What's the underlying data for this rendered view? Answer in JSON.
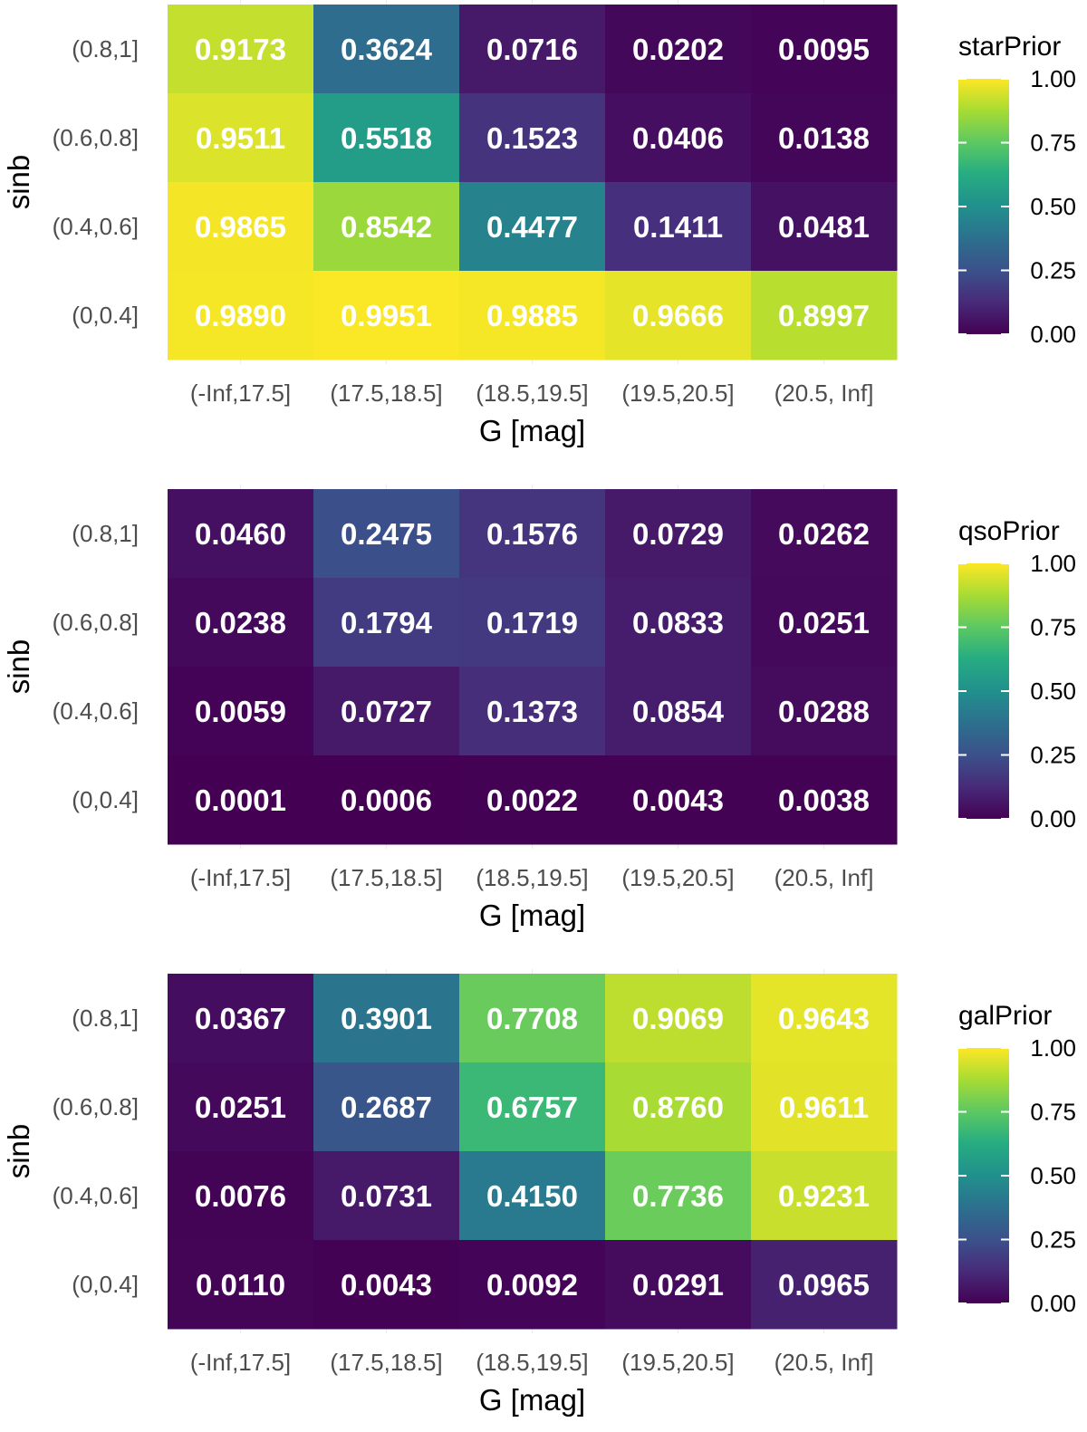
{
  "chart_data": [
    {
      "type": "heatmap",
      "xlabel": "G [mag]",
      "ylabel": "sinb",
      "x_categories": [
        "(-Inf,17.5]",
        "(17.5,18.5]",
        "(18.5,19.5]",
        "(19.5,20.5]",
        "(20.5, Inf]"
      ],
      "y_categories": [
        "(0.8,1]",
        "(0.6,0.8]",
        "(0.4,0.6]",
        "(0,0.4]"
      ],
      "values": [
        [
          0.9173,
          0.3624,
          0.0716,
          0.0202,
          0.0095
        ],
        [
          0.9511,
          0.5518,
          0.1523,
          0.0406,
          0.0138
        ],
        [
          0.9865,
          0.8542,
          0.4477,
          0.1411,
          0.0481
        ],
        [
          0.989,
          0.9951,
          0.9885,
          0.9666,
          0.8997
        ]
      ],
      "legend": {
        "title": "starPrior",
        "ticks": [
          "1.00",
          "0.75",
          "0.50",
          "0.25",
          "0.00"
        ],
        "range": [
          0,
          1
        ],
        "colormap": "viridis",
        "placement": "right"
      }
    },
    {
      "type": "heatmap",
      "xlabel": "G [mag]",
      "ylabel": "sinb",
      "x_categories": [
        "(-Inf,17.5]",
        "(17.5,18.5]",
        "(18.5,19.5]",
        "(19.5,20.5]",
        "(20.5, Inf]"
      ],
      "y_categories": [
        "(0.8,1]",
        "(0.6,0.8]",
        "(0.4,0.6]",
        "(0,0.4]"
      ],
      "values": [
        [
          0.046,
          0.2475,
          0.1576,
          0.0729,
          0.0262
        ],
        [
          0.0238,
          0.1794,
          0.1719,
          0.0833,
          0.0251
        ],
        [
          0.0059,
          0.0727,
          0.1373,
          0.0854,
          0.0288
        ],
        [
          0.0001,
          0.0006,
          0.0022,
          0.0043,
          0.0038
        ]
      ],
      "legend": {
        "title": "qsoPrior",
        "ticks": [
          "1.00",
          "0.75",
          "0.50",
          "0.25",
          "0.00"
        ],
        "range": [
          0,
          1
        ],
        "colormap": "viridis",
        "placement": "right"
      }
    },
    {
      "type": "heatmap",
      "xlabel": "G [mag]",
      "ylabel": "sinb",
      "x_categories": [
        "(-Inf,17.5]",
        "(17.5,18.5]",
        "(18.5,19.5]",
        "(19.5,20.5]",
        "(20.5, Inf]"
      ],
      "y_categories": [
        "(0.8,1]",
        "(0.6,0.8]",
        "(0.4,0.6]",
        "(0,0.4]"
      ],
      "values": [
        [
          0.0367,
          0.3901,
          0.7708,
          0.9069,
          0.9643
        ],
        [
          0.0251,
          0.2687,
          0.6757,
          0.876,
          0.9611
        ],
        [
          0.0076,
          0.0731,
          0.415,
          0.7736,
          0.9231
        ],
        [
          0.011,
          0.0043,
          0.0092,
          0.0291,
          0.0965
        ]
      ],
      "legend": {
        "title": "galPrior",
        "ticks": [
          "1.00",
          "0.75",
          "0.50",
          "0.25",
          "0.00"
        ],
        "range": [
          0,
          1
        ],
        "colormap": "viridis",
        "placement": "right"
      }
    }
  ]
}
